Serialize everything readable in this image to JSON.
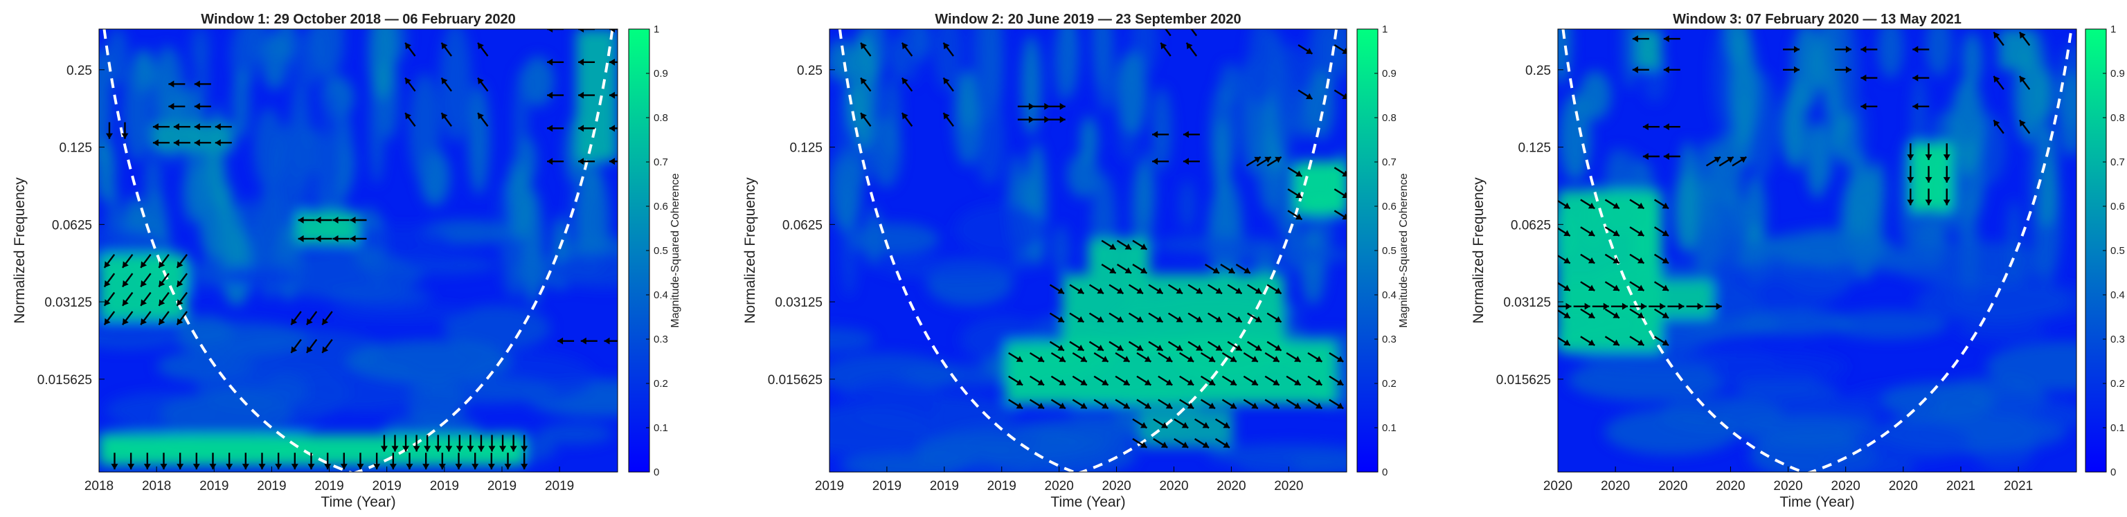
{
  "colors": {
    "low": "#0000ff",
    "high": "#00ff80",
    "cone": "#ffffff",
    "arrow": "#000000"
  },
  "colorbar": {
    "label": "Magnitude-Squared Coherence",
    "ticks": [
      0,
      0.1,
      0.2,
      0.3,
      0.4,
      0.5,
      0.6,
      0.7,
      0.8,
      0.9,
      1
    ],
    "range": [
      0,
      1
    ]
  },
  "chart_data": [
    {
      "type": "heatmap",
      "title": "Window 1: 29 October 2018 — 06 February 2020",
      "xlabel": "Time (Year)",
      "ylabel": "Normalized Frequency",
      "x_tick_labels": [
        "2018",
        "2018",
        "2019",
        "2019",
        "2019",
        "2019",
        "2019",
        "2019",
        "2019"
      ],
      "y_tick_labels": [
        "0.25",
        "0.125",
        "0.0625",
        "0.03125",
        "0.015625"
      ],
      "y_scale": "log2",
      "y_range": [
        0.0068,
        0.36
      ],
      "color_range": [
        0,
        1
      ],
      "cone_of_influence": {
        "left_x": 0.01,
        "bottom_x": 0.49,
        "right_x": 0.99
      },
      "high_coherence_regions": [
        {
          "t": [
            0.0,
            0.17
          ],
          "f": [
            0.0265,
            0.048
          ],
          "coherence": 0.85
        },
        {
          "t": [
            0.0,
            0.82
          ],
          "f": [
            0.0072,
            0.0095
          ],
          "coherence": 0.9
        },
        {
          "t": [
            0.38,
            0.5
          ],
          "f": [
            0.052,
            0.07
          ],
          "coherence": 0.82
        },
        {
          "t": [
            0.1,
            0.26
          ],
          "f": [
            0.12,
            0.155
          ],
          "coherence": 0.6
        },
        {
          "t": [
            0.92,
            1.0
          ],
          "f": [
            0.11,
            0.36
          ],
          "coherence": 0.7
        }
      ],
      "arrow_groups": [
        {
          "t": [
            0.02,
            0.16
          ],
          "f": [
            0.027,
            0.045
          ],
          "dir": "left-down",
          "n": [
            5,
            4
          ]
        },
        {
          "t": [
            0.03,
            0.82
          ],
          "f": [
            0.0075,
            0.0075
          ],
          "dir": "down",
          "n": [
            26,
            1
          ]
        },
        {
          "t": [
            0.55,
            0.82
          ],
          "f": [
            0.0088,
            0.0088
          ],
          "dir": "down",
          "n": [
            14,
            1
          ]
        },
        {
          "t": [
            0.4,
            0.5
          ],
          "f": [
            0.055,
            0.065
          ],
          "dir": "left",
          "n": [
            4,
            2
          ]
        },
        {
          "t": [
            0.38,
            0.44
          ],
          "f": [
            0.021,
            0.027
          ],
          "dir": "left-down",
          "n": [
            3,
            2
          ]
        },
        {
          "t": [
            0.12,
            0.24
          ],
          "f": [
            0.13,
            0.15
          ],
          "dir": "left",
          "n": [
            4,
            2
          ]
        },
        {
          "t": [
            0.15,
            0.2
          ],
          "f": [
            0.18,
            0.22
          ],
          "dir": "left",
          "n": [
            2,
            2
          ]
        },
        {
          "t": [
            0.02,
            0.05
          ],
          "f": [
            0.145,
            0.145
          ],
          "dir": "down",
          "n": [
            2,
            1
          ]
        },
        {
          "t": [
            0.6,
            0.74
          ],
          "f": [
            0.16,
            0.3
          ],
          "dir": "left-up",
          "n": [
            3,
            3
          ]
        },
        {
          "t": [
            0.88,
            1.0
          ],
          "f": [
            0.11,
            0.36
          ],
          "dir": "left",
          "n": [
            3,
            5
          ]
        },
        {
          "t": [
            0.9,
            0.99
          ],
          "f": [
            0.022,
            0.022
          ],
          "dir": "left",
          "n": [
            3,
            1
          ]
        }
      ]
    },
    {
      "type": "heatmap",
      "title": "Window 2: 20 June 2019 — 23 September 2020",
      "xlabel": "Time (Year)",
      "ylabel": "Normalized Frequency",
      "x_tick_labels": [
        "2019",
        "2019",
        "2019",
        "2019",
        "2020",
        "2020",
        "2020",
        "2020",
        "2020"
      ],
      "y_tick_labels": [
        "0.25",
        "0.125",
        "0.0625",
        "0.03125",
        "0.015625"
      ],
      "y_scale": "log2",
      "y_range": [
        0.0068,
        0.36
      ],
      "color_range": [
        0,
        1
      ],
      "cone_of_influence": {
        "left_x": 0.02,
        "bottom_x": 0.48,
        "right_x": 0.98
      },
      "high_coherence_regions": [
        {
          "t": [
            0.34,
            0.98
          ],
          "f": [
            0.0125,
            0.022
          ],
          "coherence": 0.85
        },
        {
          "t": [
            0.45,
            0.88
          ],
          "f": [
            0.02,
            0.04
          ],
          "coherence": 0.82
        },
        {
          "t": [
            0.5,
            0.62
          ],
          "f": [
            0.04,
            0.055
          ],
          "coherence": 0.8
        },
        {
          "t": [
            0.9,
            1.0
          ],
          "f": [
            0.068,
            0.11
          ],
          "coherence": 0.9
        },
        {
          "t": [
            0.6,
            0.78
          ],
          "f": [
            0.0085,
            0.012
          ],
          "coherence": 0.65
        }
      ],
      "arrow_groups": [
        {
          "t": [
            0.36,
            0.98
          ],
          "f": [
            0.0125,
            0.019
          ],
          "dir": "right-down",
          "n": [
            16,
            3
          ]
        },
        {
          "t": [
            0.44,
            0.86
          ],
          "f": [
            0.021,
            0.035
          ],
          "dir": "right-down",
          "n": [
            12,
            3
          ]
        },
        {
          "t": [
            0.54,
            0.6
          ],
          "f": [
            0.042,
            0.052
          ],
          "dir": "right-down",
          "n": [
            3,
            2
          ]
        },
        {
          "t": [
            0.74,
            0.8
          ],
          "f": [
            0.042,
            0.042
          ],
          "dir": "right-down",
          "n": [
            3,
            1
          ]
        },
        {
          "t": [
            0.6,
            0.76
          ],
          "f": [
            0.0088,
            0.0105
          ],
          "dir": "right-down",
          "n": [
            5,
            2
          ]
        },
        {
          "t": [
            0.9,
            0.99
          ],
          "f": [
            0.068,
            0.1
          ],
          "dir": "right-down",
          "n": [
            2,
            3
          ]
        },
        {
          "t": [
            0.07,
            0.23
          ],
          "f": [
            0.16,
            0.3
          ],
          "dir": "left-up",
          "n": [
            3,
            3
          ]
        },
        {
          "t": [
            0.38,
            0.44
          ],
          "f": [
            0.16,
            0.18
          ],
          "dir": "right",
          "n": [
            3,
            2
          ]
        },
        {
          "t": [
            0.64,
            0.7
          ],
          "f": [
            0.11,
            0.14
          ],
          "dir": "left",
          "n": [
            2,
            2
          ]
        },
        {
          "t": [
            0.82,
            0.86
          ],
          "f": [
            0.11,
            0.11
          ],
          "dir": "right-up",
          "n": [
            3,
            1
          ]
        },
        {
          "t": [
            0.92,
            0.99
          ],
          "f": [
            0.2,
            0.3
          ],
          "dir": "right-down",
          "n": [
            2,
            2
          ]
        },
        {
          "t": [
            0.65,
            0.7
          ],
          "f": [
            0.3,
            0.36
          ],
          "dir": "left-up",
          "n": [
            2,
            2
          ]
        }
      ]
    },
    {
      "type": "heatmap",
      "title": "Window 3: 07 February 2020 — 13 May 2021",
      "xlabel": "Time (Year)",
      "ylabel": "Normalized Frequency",
      "x_tick_labels": [
        "2020",
        "2020",
        "2020",
        "2020",
        "2020",
        "2020",
        "2020",
        "2021",
        "2021"
      ],
      "y_tick_labels": [
        "0.25",
        "0.125",
        "0.0625",
        "0.03125",
        "0.015625"
      ],
      "y_scale": "log2",
      "y_range": [
        0.0068,
        0.36
      ],
      "color_range": [
        0,
        1
      ],
      "cone_of_influence": {
        "left_x": 0.01,
        "bottom_x": 0.48,
        "right_x": 0.99
      },
      "high_coherence_regions": [
        {
          "t": [
            0.0,
            0.2
          ],
          "f": [
            0.02,
            0.085
          ],
          "coherence": 0.85
        },
        {
          "t": [
            0.0,
            0.3
          ],
          "f": [
            0.027,
            0.038
          ],
          "coherence": 0.8
        },
        {
          "t": [
            0.68,
            0.76
          ],
          "f": [
            0.07,
            0.13
          ],
          "coherence": 0.9
        },
        {
          "t": [
            0.15,
            0.2
          ],
          "f": [
            0.25,
            0.36
          ],
          "coherence": 0.65
        },
        {
          "t": [
            0.85,
            0.92
          ],
          "f": [
            0.25,
            0.36
          ],
          "coherence": 0.55
        }
      ],
      "arrow_groups": [
        {
          "t": [
            0.01,
            0.2
          ],
          "f": [
            0.022,
            0.075
          ],
          "dir": "right-down",
          "n": [
            5,
            6
          ]
        },
        {
          "t": [
            0.01,
            0.3
          ],
          "f": [
            0.03,
            0.03
          ],
          "dir": "right",
          "n": [
            9,
            1
          ]
        },
        {
          "t": [
            0.68,
            0.75
          ],
          "f": [
            0.08,
            0.12
          ],
          "dir": "down",
          "n": [
            3,
            3
          ]
        },
        {
          "t": [
            0.16,
            0.22
          ],
          "f": [
            0.25,
            0.33
          ],
          "dir": "left",
          "n": [
            2,
            2
          ]
        },
        {
          "t": [
            0.45,
            0.55
          ],
          "f": [
            0.25,
            0.3
          ],
          "dir": "right",
          "n": [
            2,
            2
          ]
        },
        {
          "t": [
            0.6,
            0.7
          ],
          "f": [
            0.18,
            0.3
          ],
          "dir": "left",
          "n": [
            2,
            3
          ]
        },
        {
          "t": [
            0.18,
            0.22
          ],
          "f": [
            0.115,
            0.15
          ],
          "dir": "left",
          "n": [
            2,
            2
          ]
        },
        {
          "t": [
            0.3,
            0.35
          ],
          "f": [
            0.11,
            0.11
          ],
          "dir": "right-up",
          "n": [
            3,
            1
          ]
        },
        {
          "t": [
            0.85,
            0.9
          ],
          "f": [
            0.15,
            0.33
          ],
          "dir": "left-up",
          "n": [
            2,
            3
          ]
        }
      ]
    }
  ]
}
